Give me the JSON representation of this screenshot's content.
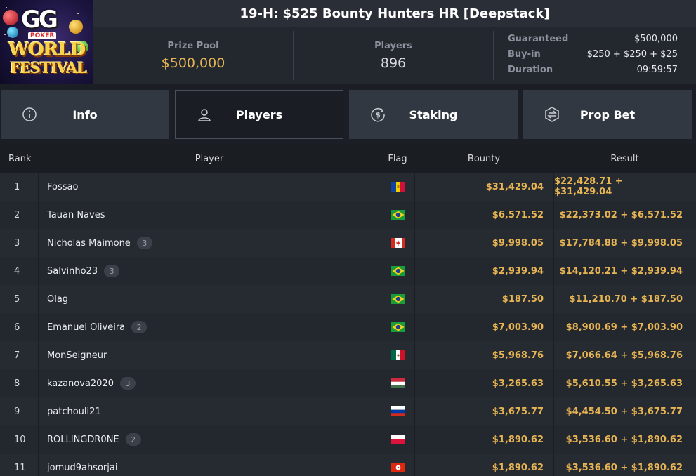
{
  "tournament": {
    "title": "19-H: $525 Bounty Hunters HR [Deepstack]",
    "prize_pool_label": "Prize Pool",
    "prize_pool": "$500,000",
    "players_label": "Players",
    "players": "896",
    "guaranteed_label": "Guaranteed",
    "guaranteed": "$500,000",
    "buyin_label": "Buy-in",
    "buyin": "$250 + $250 + $25",
    "duration_label": "Duration",
    "duration": "09:59:57"
  },
  "logo": {
    "line1": "GG",
    "line2": "POKER",
    "line3": "WORLD",
    "line4": "FESTIVAL"
  },
  "tabs": [
    {
      "label": "Info",
      "icon": "info-icon"
    },
    {
      "label": "Players",
      "icon": "user-icon"
    },
    {
      "label": "Staking",
      "icon": "dollar-circle-icon"
    },
    {
      "label": "Prop Bet",
      "icon": "prop-bet-icon"
    }
  ],
  "table": {
    "headers": {
      "rank": "Rank",
      "player": "Player",
      "flag": "Flag",
      "bounty": "Bounty",
      "result": "Result"
    },
    "rows": [
      {
        "rank": "1",
        "player": "Fossao",
        "badge": "",
        "flag": "andorra",
        "bounty": "$31,429.04",
        "result": "$22,428.71 + $31,429.04"
      },
      {
        "rank": "2",
        "player": "Tauan Naves",
        "badge": "",
        "flag": "brazil",
        "bounty": "$6,571.52",
        "result": "$22,373.02 + $6,571.52"
      },
      {
        "rank": "3",
        "player": "Nicholas Maimone",
        "badge": "3",
        "flag": "canada",
        "bounty": "$9,998.05",
        "result": "$17,784.88 + $9,998.05"
      },
      {
        "rank": "4",
        "player": "Salvinho23",
        "badge": "3",
        "flag": "brazil",
        "bounty": "$2,939.94",
        "result": "$14,120.21 + $2,939.94"
      },
      {
        "rank": "5",
        "player": "Olag",
        "badge": "",
        "flag": "brazil",
        "bounty": "$187.50",
        "result": "$11,210.70 + $187.50"
      },
      {
        "rank": "6",
        "player": "Emanuel Oliveira",
        "badge": "2",
        "flag": "brazil",
        "bounty": "$7,003.90",
        "result": "$8,900.69 + $7,003.90"
      },
      {
        "rank": "7",
        "player": "MonSeigneur",
        "badge": "",
        "flag": "mexico",
        "bounty": "$5,968.76",
        "result": "$7,066.64 + $5,968.76"
      },
      {
        "rank": "8",
        "player": "kazanova2020",
        "badge": "3",
        "flag": "hungary",
        "bounty": "$3,265.63",
        "result": "$5,610.55 + $3,265.63"
      },
      {
        "rank": "9",
        "player": "patchouli21",
        "badge": "",
        "flag": "russia",
        "bounty": "$3,675.77",
        "result": "$4,454.50 + $3,675.77"
      },
      {
        "rank": "10",
        "player": "ROLLINGDR0NE",
        "badge": "2",
        "flag": "poland",
        "bounty": "$1,890.62",
        "result": "$3,536.60 + $1,890.62"
      },
      {
        "rank": "11",
        "player": "jomud9ahsorjai",
        "badge": "",
        "flag": "hong-kong",
        "bounty": "$1,890.62",
        "result": "$3,536.60 + $1,890.62"
      }
    ]
  },
  "colors": {
    "gold": "#e7b453",
    "panel": "#23272e",
    "tab": "#323841",
    "title_bar": "#2a2f37"
  }
}
